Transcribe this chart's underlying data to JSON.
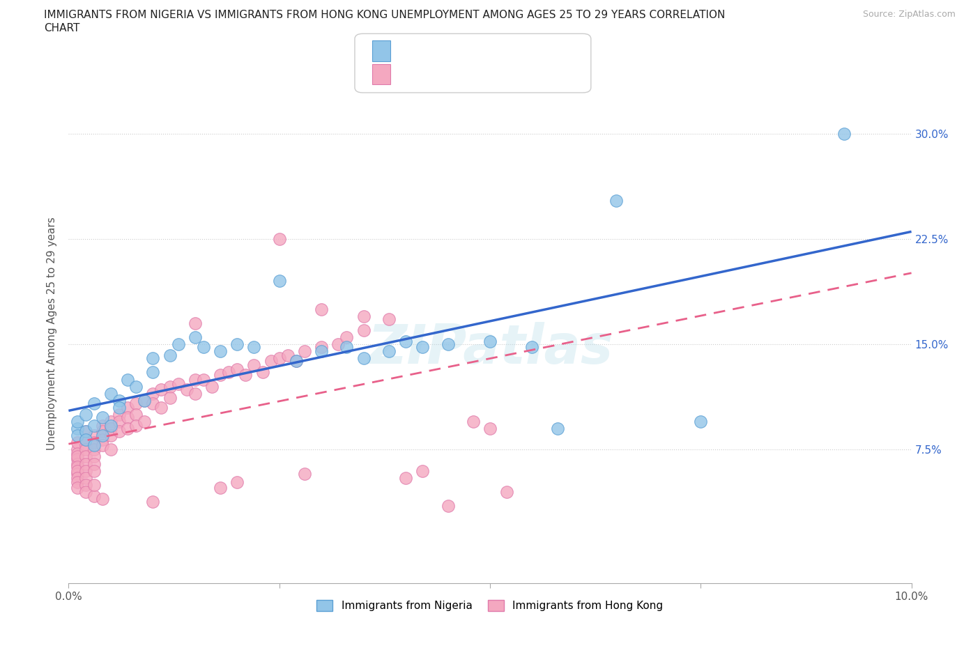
{
  "title_line1": "IMMIGRANTS FROM NIGERIA VS IMMIGRANTS FROM HONG KONG UNEMPLOYMENT AMONG AGES 25 TO 29 YEARS CORRELATION",
  "title_line2": "CHART",
  "source": "Source: ZipAtlas.com",
  "ylabel": "Unemployment Among Ages 25 to 29 years",
  "xlim": [
    0.0,
    0.1
  ],
  "ylim": [
    -0.02,
    0.335
  ],
  "nigeria_color": "#92C5E8",
  "nigeria_edge": "#5A9FD4",
  "hk_color": "#F4A8C0",
  "hk_edge": "#E07AAA",
  "nigeria_line_color": "#3366CC",
  "hk_line_color": "#E8608A",
  "watermark": "ZIPatlas",
  "nigeria_scatter_x": [
    0.001,
    0.001,
    0.001,
    0.002,
    0.002,
    0.002,
    0.003,
    0.003,
    0.003,
    0.004,
    0.004,
    0.005,
    0.005,
    0.006,
    0.006,
    0.007,
    0.008,
    0.009,
    0.01,
    0.01,
    0.012,
    0.013,
    0.015,
    0.016,
    0.018,
    0.02,
    0.022,
    0.025,
    0.027,
    0.03,
    0.033,
    0.035,
    0.038,
    0.04,
    0.042,
    0.045,
    0.05,
    0.055,
    0.058,
    0.065,
    0.075,
    0.092
  ],
  "nigeria_scatter_y": [
    0.09,
    0.085,
    0.095,
    0.088,
    0.082,
    0.1,
    0.092,
    0.078,
    0.108,
    0.085,
    0.098,
    0.092,
    0.115,
    0.11,
    0.105,
    0.125,
    0.12,
    0.11,
    0.13,
    0.14,
    0.142,
    0.15,
    0.155,
    0.148,
    0.145,
    0.15,
    0.148,
    0.195,
    0.138,
    0.145,
    0.148,
    0.14,
    0.145,
    0.152,
    0.148,
    0.15,
    0.152,
    0.148,
    0.09,
    0.252,
    0.095,
    0.3
  ],
  "hk_scatter_x": [
    0.001,
    0.001,
    0.001,
    0.001,
    0.001,
    0.001,
    0.001,
    0.001,
    0.001,
    0.001,
    0.001,
    0.001,
    0.002,
    0.002,
    0.002,
    0.002,
    0.002,
    0.002,
    0.002,
    0.002,
    0.002,
    0.002,
    0.003,
    0.003,
    0.003,
    0.003,
    0.003,
    0.003,
    0.003,
    0.003,
    0.004,
    0.004,
    0.004,
    0.004,
    0.004,
    0.005,
    0.005,
    0.005,
    0.005,
    0.006,
    0.006,
    0.006,
    0.007,
    0.007,
    0.007,
    0.008,
    0.008,
    0.008,
    0.009,
    0.009,
    0.01,
    0.01,
    0.011,
    0.011,
    0.012,
    0.012,
    0.013,
    0.014,
    0.015,
    0.015,
    0.016,
    0.017,
    0.018,
    0.019,
    0.02,
    0.021,
    0.022,
    0.023,
    0.024,
    0.025,
    0.026,
    0.027,
    0.028,
    0.03,
    0.032,
    0.033,
    0.035,
    0.038,
    0.04,
    0.042,
    0.015,
    0.025,
    0.03,
    0.035,
    0.048,
    0.05,
    0.045,
    0.052,
    0.02,
    0.018,
    0.028,
    0.01
  ],
  "hk_scatter_y": [
    0.075,
    0.08,
    0.072,
    0.068,
    0.065,
    0.07,
    0.063,
    0.058,
    0.06,
    0.055,
    0.052,
    0.048,
    0.078,
    0.082,
    0.075,
    0.07,
    0.065,
    0.06,
    0.055,
    0.05,
    0.088,
    0.045,
    0.085,
    0.08,
    0.075,
    0.07,
    0.065,
    0.06,
    0.042,
    0.05,
    0.092,
    0.088,
    0.082,
    0.078,
    0.04,
    0.095,
    0.09,
    0.085,
    0.075,
    0.1,
    0.095,
    0.088,
    0.105,
    0.098,
    0.09,
    0.108,
    0.1,
    0.092,
    0.11,
    0.095,
    0.115,
    0.108,
    0.118,
    0.105,
    0.12,
    0.112,
    0.122,
    0.118,
    0.125,
    0.115,
    0.125,
    0.12,
    0.128,
    0.13,
    0.132,
    0.128,
    0.135,
    0.13,
    0.138,
    0.14,
    0.142,
    0.138,
    0.145,
    0.148,
    0.15,
    0.155,
    0.16,
    0.168,
    0.055,
    0.06,
    0.165,
    0.225,
    0.175,
    0.17,
    0.095,
    0.09,
    0.035,
    0.045,
    0.052,
    0.048,
    0.058,
    0.038
  ]
}
